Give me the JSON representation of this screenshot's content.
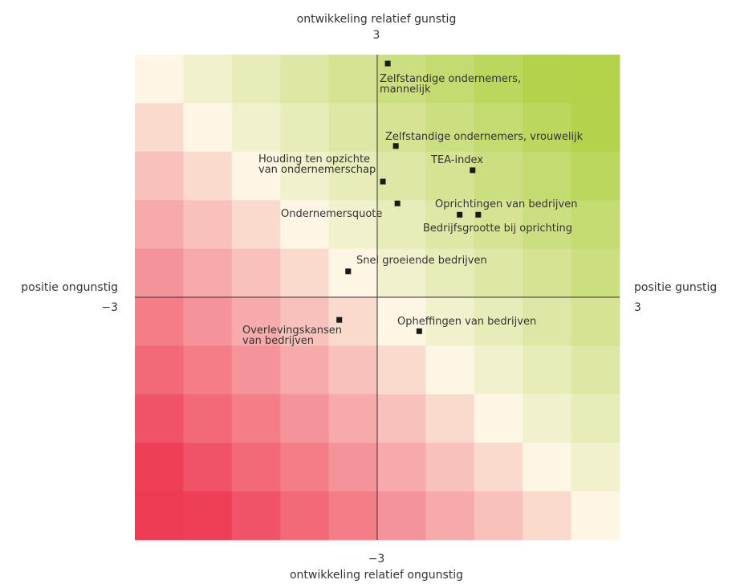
{
  "chart_data": {
    "type": "scatter",
    "title": "",
    "xlim": [
      -3,
      3
    ],
    "ylim": [
      -3,
      3
    ],
    "grid": false,
    "background": "diverging red-to-green heatmap (10 x 10 cells)",
    "colors": {
      "high": "#b1d249",
      "neutral": "#fdf6e4",
      "low": "#ee3b54",
      "marker": "#1a1a1a"
    },
    "axes": {
      "top": {
        "label": "ontwikkeling relatief gunstig",
        "value": "3"
      },
      "bottom": {
        "label": "ontwikkeling relatief ongunstig",
        "value": "−3"
      },
      "left": {
        "label": "positie ongunstig",
        "value": "−3"
      },
      "right": {
        "label": "positie gunstig",
        "value": "3"
      }
    },
    "points": [
      {
        "label": "Zelfstandige ondernemers, mannelijk",
        "x": 0.13,
        "y": 2.89
      },
      {
        "label": "Zelfstandige ondernemers, vrouwelijk",
        "x": 0.23,
        "y": 1.87
      },
      {
        "label": "TEA-index",
        "x": 1.18,
        "y": 1.57
      },
      {
        "label": "Houding ten opzichte van ondernemerschap",
        "x": 0.07,
        "y": 1.43
      },
      {
        "label": "Ondernemersquote",
        "x": 0.25,
        "y": 1.16
      },
      {
        "label": "Oprichtingen van bedrijven",
        "x": 1.25,
        "y": 1.02
      },
      {
        "label": "Bedrijfsgrootte bij oprichting",
        "x": 1.02,
        "y": 1.02
      },
      {
        "label": "Snel groeiende bedrijven",
        "x": -0.36,
        "y": 0.32
      },
      {
        "label": "Overlevingskansen van bedrijven",
        "x": -0.47,
        "y": -0.28
      },
      {
        "label": "Opheffingen van bedrijven",
        "x": 0.52,
        "y": -0.42
      }
    ]
  }
}
